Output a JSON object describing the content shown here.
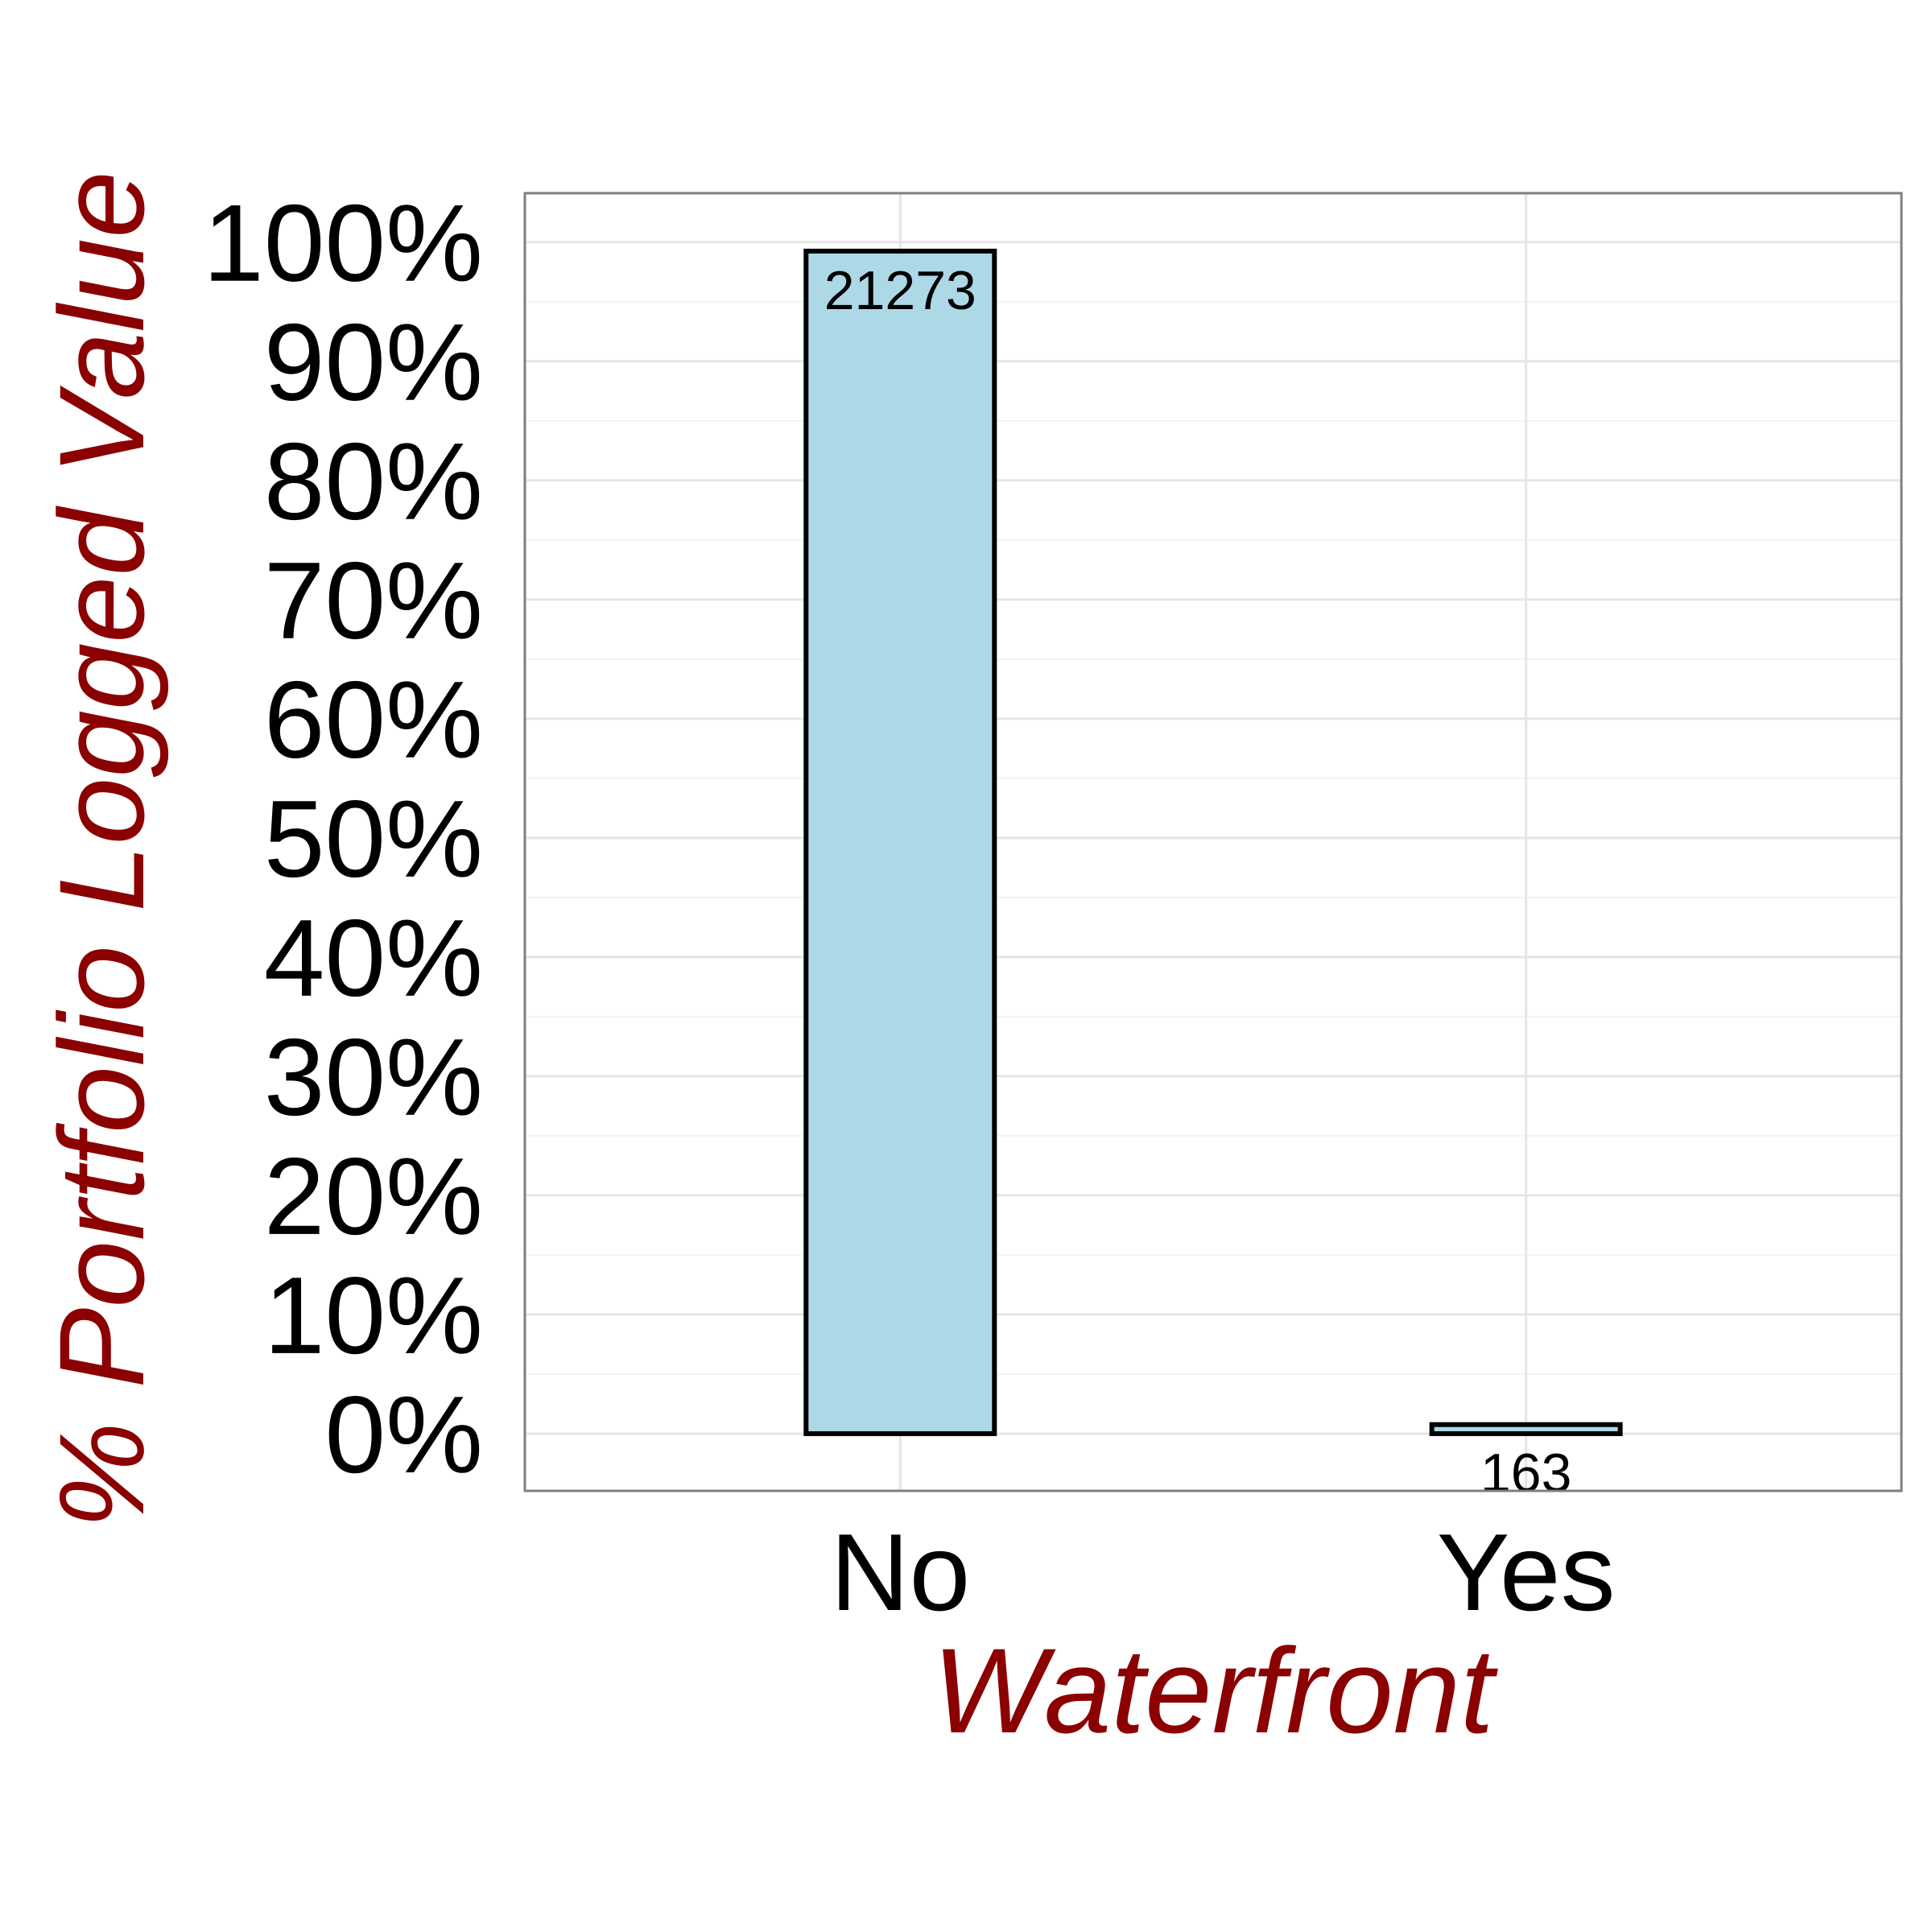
{
  "chart_data": {
    "type": "bar",
    "title": "",
    "xlabel": "Waterfront",
    "ylabel": "% Portfolio Logged Value",
    "categories": [
      "No",
      "Yes"
    ],
    "values": [
      99.24,
      0.76
    ],
    "data_labels": [
      "21273",
      "163"
    ],
    "ylim": [
      -4.8,
      104.1
    ],
    "yticks": [
      0,
      10,
      20,
      30,
      40,
      50,
      60,
      70,
      80,
      90,
      100
    ],
    "ytick_labels": [
      "0%",
      "10%",
      "20%",
      "30%",
      "40%",
      "50%",
      "60%",
      "70%",
      "80%",
      "90%",
      "100%"
    ],
    "grid": true,
    "legend": "none",
    "colors": {
      "bar_fill": "#add8e6",
      "bar_stroke": "#000000",
      "axis_title": "#8b0000",
      "grid_major": "#e5e5e5",
      "grid_minor": "#f2f2f2",
      "panel_border": "#7f7f7f"
    }
  }
}
